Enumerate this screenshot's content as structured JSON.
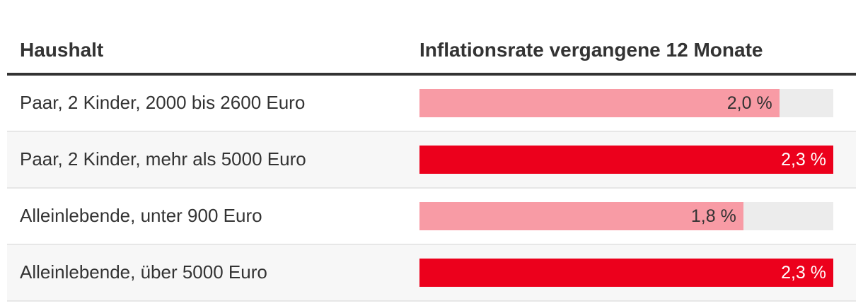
{
  "header": {
    "left": "Haushalt",
    "right": "Inflationsrate vergangene 12 Monate"
  },
  "rows": [
    {
      "label": "Paar, 2 Kinder, 2000 bis 2600 Euro",
      "value": 2.0,
      "value_label": "2,0 %",
      "style": "pink"
    },
    {
      "label": "Paar, 2 Kinder, mehr als 5000 Euro",
      "value": 2.3,
      "value_label": "2,3 %",
      "style": "red"
    },
    {
      "label": "Alleinlebende, unter 900 Euro",
      "value": 1.8,
      "value_label": "1,8 %",
      "style": "pink"
    },
    {
      "label": "Alleinlebende, über 5000 Euro",
      "value": 2.3,
      "value_label": "2,3 %",
      "style": "red"
    }
  ],
  "colors": {
    "red": "#ec001c",
    "pink": "#f89ba5",
    "track": "#ececec",
    "row_alt": "#f7f7f7",
    "text": "#333333",
    "value_on_red": "#ffffff",
    "header_rule": "#333333",
    "divider": "#e7e7e7"
  },
  "chart_data": {
    "type": "bar",
    "orientation": "horizontal",
    "title": "Inflationsrate vergangene 12 Monate",
    "xlabel": "",
    "ylabel": "Haushalt",
    "categories": [
      "Paar, 2 Kinder, 2000 bis 2600 Euro",
      "Paar, 2 Kinder, mehr als 5000 Euro",
      "Alleinlebende, unter 900 Euro",
      "Alleinlebende, über 5000 Euro"
    ],
    "values": [
      2.0,
      2.3,
      1.8,
      2.3
    ],
    "value_labels": [
      "2,0 %",
      "2,3 %",
      "1,8 %",
      "2,3 %"
    ],
    "unit": "%",
    "xlim": [
      0,
      2.3
    ],
    "grid": false,
    "legend": false
  }
}
